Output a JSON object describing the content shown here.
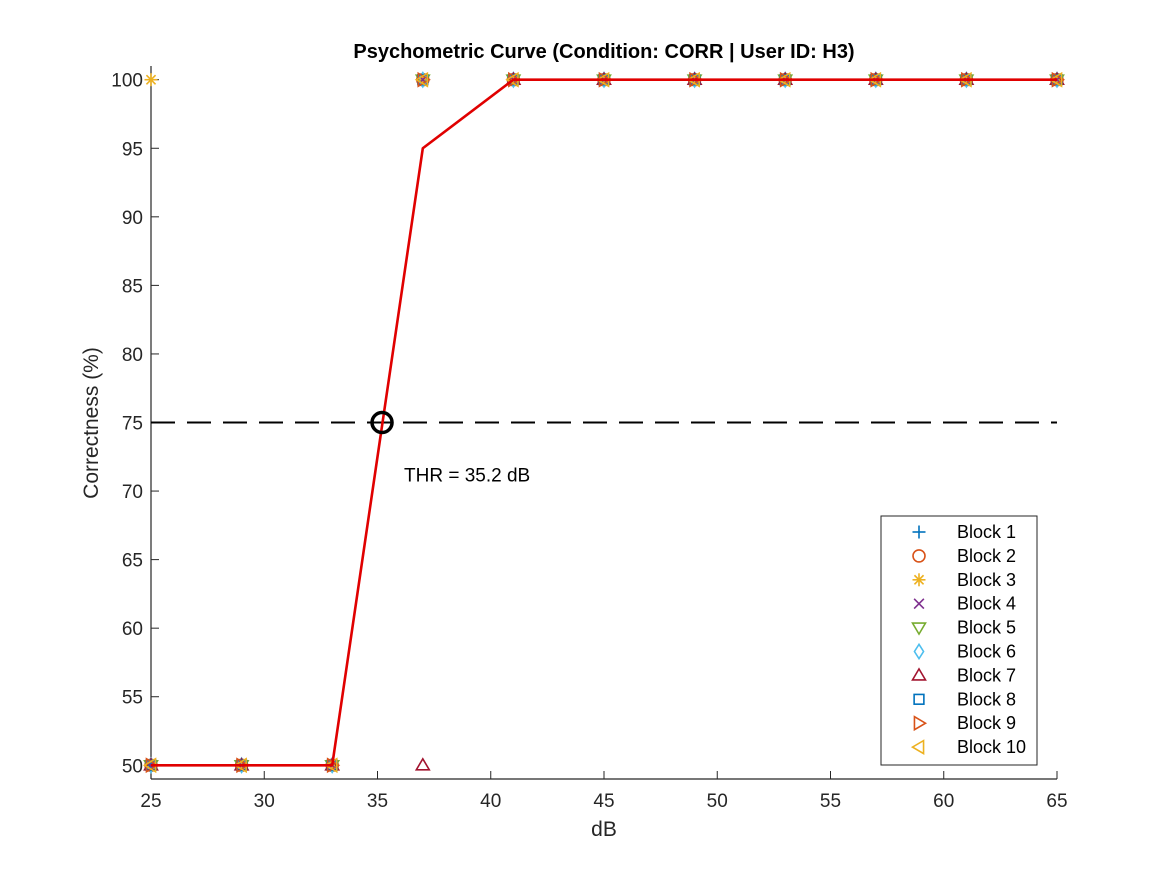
{
  "chart_data": {
    "type": "line",
    "title": "Psychometric Curve (Condition: CORR | User ID: H3)",
    "xlabel": "dB",
    "ylabel": "Correctness (%)",
    "xlim": [
      25,
      65
    ],
    "ylim": [
      49,
      101
    ],
    "xticks": [
      "25",
      "30",
      "35",
      "40",
      "45",
      "50",
      "55",
      "60",
      "65"
    ],
    "yticks": [
      "50",
      "55",
      "60",
      "65",
      "70",
      "75",
      "80",
      "85",
      "90",
      "95",
      "100"
    ],
    "grid": false,
    "legend_position": "bottom-right",
    "fit_line": {
      "color": "#e00000",
      "x": [
        25,
        29,
        33,
        37,
        41,
        45,
        49,
        53,
        57,
        61,
        65
      ],
      "y": [
        50,
        50,
        50,
        95,
        100,
        100,
        100,
        100,
        100,
        100,
        100
      ]
    },
    "threshold": {
      "line_y": 75,
      "x": 35.2,
      "y": 75,
      "label": "THR = 35.2 dB"
    },
    "series": [
      {
        "name": "Block 1",
        "marker": "plus",
        "color": "#0072BD",
        "x": [
          25,
          29,
          33,
          37,
          41,
          45,
          49,
          53,
          57,
          61,
          65
        ],
        "y": [
          50,
          50,
          50,
          100,
          100,
          100,
          100,
          100,
          100,
          100,
          100
        ]
      },
      {
        "name": "Block 2",
        "marker": "circle",
        "color": "#D95319",
        "x": [
          25,
          29,
          33,
          37,
          41,
          45,
          49,
          53,
          57,
          61,
          65
        ],
        "y": [
          50,
          50,
          50,
          100,
          100,
          100,
          100,
          100,
          100,
          100,
          100
        ]
      },
      {
        "name": "Block 3",
        "marker": "asterisk",
        "color": "#EDB120",
        "x": [
          25,
          29,
          33,
          37,
          41,
          45,
          49,
          53,
          57,
          61,
          65
        ],
        "y": [
          100,
          50,
          50,
          100,
          100,
          100,
          100,
          100,
          100,
          100,
          100
        ]
      },
      {
        "name": "Block 4",
        "marker": "cross",
        "color": "#7E2F8E",
        "x": [
          25,
          29,
          33,
          37,
          41,
          45,
          49,
          53,
          57,
          61,
          65
        ],
        "y": [
          50,
          50,
          50,
          100,
          100,
          100,
          100,
          100,
          100,
          100,
          100
        ]
      },
      {
        "name": "Block 5",
        "marker": "triangle-down",
        "color": "#77AC30",
        "x": [
          25,
          29,
          33,
          37,
          41,
          45,
          49,
          53,
          57,
          61,
          65
        ],
        "y": [
          50,
          50,
          50,
          100,
          100,
          100,
          100,
          100,
          100,
          100,
          100
        ]
      },
      {
        "name": "Block 6",
        "marker": "diamond",
        "color": "#4DBEEE",
        "x": [
          25,
          29,
          33,
          37,
          41,
          45,
          49,
          53,
          57,
          61,
          65
        ],
        "y": [
          50,
          50,
          50,
          100,
          100,
          100,
          100,
          100,
          100,
          100,
          100
        ]
      },
      {
        "name": "Block 7",
        "marker": "triangle-up",
        "color": "#A2142F",
        "x": [
          25,
          29,
          33,
          37,
          41,
          45,
          49,
          53,
          57,
          61,
          65
        ],
        "y": [
          50,
          50,
          50,
          50,
          100,
          100,
          100,
          100,
          100,
          100,
          100
        ]
      },
      {
        "name": "Block 8",
        "marker": "square",
        "color": "#0072BD",
        "x": [
          25,
          29,
          33,
          37,
          41,
          45,
          49,
          53,
          57,
          61,
          65
        ],
        "y": [
          50,
          50,
          50,
          100,
          100,
          100,
          100,
          100,
          100,
          100,
          100
        ]
      },
      {
        "name": "Block 9",
        "marker": "triangle-right",
        "color": "#D95319",
        "x": [
          25,
          29,
          33,
          37,
          41,
          45,
          49,
          53,
          57,
          61,
          65
        ],
        "y": [
          50,
          50,
          50,
          100,
          100,
          100,
          100,
          100,
          100,
          100,
          100
        ]
      },
      {
        "name": "Block 10",
        "marker": "triangle-left",
        "color": "#EDB120",
        "x": [
          25,
          29,
          33,
          37,
          41,
          45,
          49,
          53,
          57,
          61,
          65
        ],
        "y": [
          50,
          50,
          50,
          100,
          100,
          100,
          100,
          100,
          100,
          100,
          100
        ]
      }
    ]
  }
}
